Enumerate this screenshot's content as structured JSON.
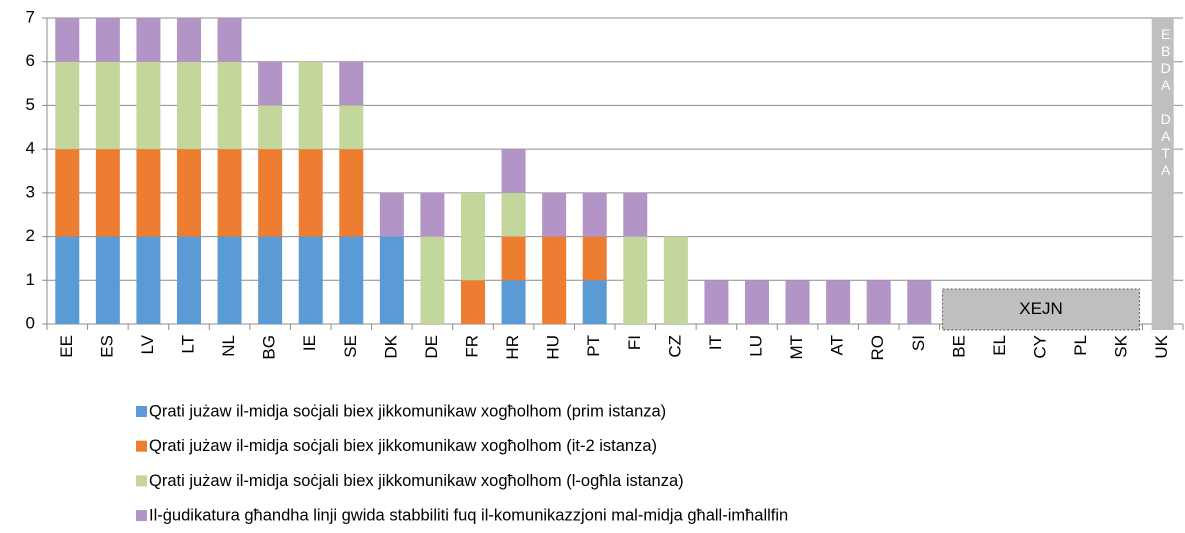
{
  "chart_data": {
    "type": "bar",
    "stacked": true,
    "categories": [
      "EE",
      "ES",
      "LV",
      "LT",
      "NL",
      "BG",
      "IE",
      "SE",
      "DK",
      "DE",
      "FR",
      "HR",
      "HU",
      "PT",
      "FI",
      "CZ",
      "IT",
      "LU",
      "MT",
      "AT",
      "RO",
      "SI",
      "BE",
      "EL",
      "CY",
      "PL",
      "SK",
      "UK"
    ],
    "series": [
      {
        "name": "Qrati jużaw il-midja soċjali biex jikkomunikaw xogħolhom (prim istanza)",
        "color": "#5b9bd5",
        "values": [
          2,
          2,
          2,
          2,
          2,
          2,
          2,
          2,
          2,
          0,
          0,
          1,
          0,
          1,
          0,
          0,
          0,
          0,
          0,
          0,
          0,
          0,
          0,
          0,
          0,
          0,
          0,
          0
        ]
      },
      {
        "name": "Qrati jużaw il-midja soċjali biex jikkomunikaw xogħolhom  (it-2 istanza)",
        "color": "#ed7d31",
        "values": [
          2,
          2,
          2,
          2,
          2,
          2,
          2,
          2,
          0,
          0,
          1,
          1,
          2,
          1,
          0,
          0,
          0,
          0,
          0,
          0,
          0,
          0,
          0,
          0,
          0,
          0,
          0,
          0
        ]
      },
      {
        "name": "Qrati jużaw il-midja soċjali biex jikkomunikaw xogħolhom (l-ogħla istanza)",
        "color": "#c3d69b",
        "values": [
          2,
          2,
          2,
          2,
          2,
          1,
          2,
          1,
          0,
          2,
          2,
          1,
          0,
          0,
          2,
          2,
          0,
          0,
          0,
          0,
          0,
          0,
          0,
          0,
          0,
          0,
          0,
          0
        ]
      },
      {
        "name": "Il-ġudikatura għandha linji gwida stabbiliti fuq il-komunikazzjoni mal-midja għall-imħallfin",
        "color": "#b294c7",
        "values": [
          1,
          1,
          1,
          1,
          1,
          1,
          0,
          1,
          1,
          1,
          0,
          1,
          1,
          1,
          1,
          0,
          1,
          1,
          1,
          1,
          1,
          1,
          0,
          0,
          0,
          0,
          0,
          0
        ]
      }
    ],
    "ylim": [
      0,
      7
    ],
    "yticks": [
      0,
      1,
      2,
      3,
      4,
      5,
      6,
      7
    ],
    "grid": true,
    "annotations": [
      {
        "text": "XEJN"
      },
      {
        "text": "EBDA DATA"
      }
    ]
  }
}
